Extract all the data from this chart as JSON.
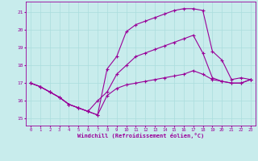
{
  "xlabel": "Windchill (Refroidissement éolien,°C)",
  "background_color": "#c8ecec",
  "line_color": "#990099",
  "grid_color": "#aadddd",
  "xlim": [
    -0.5,
    23.5
  ],
  "ylim": [
    14.6,
    21.6
  ],
  "xticks": [
    0,
    1,
    2,
    3,
    4,
    5,
    6,
    7,
    8,
    9,
    10,
    11,
    12,
    13,
    14,
    15,
    16,
    17,
    18,
    19,
    20,
    21,
    22,
    23
  ],
  "yticks": [
    15,
    16,
    17,
    18,
    19,
    20,
    21
  ],
  "line1_x": [
    0,
    1,
    2,
    3,
    4,
    5,
    6,
    7,
    8,
    9,
    10,
    11,
    12,
    13,
    14,
    15,
    16,
    17,
    18,
    19,
    20,
    21,
    22,
    23
  ],
  "line1_y": [
    17.0,
    16.8,
    16.5,
    16.2,
    15.8,
    15.6,
    15.4,
    15.2,
    17.8,
    18.5,
    19.9,
    20.3,
    20.5,
    20.7,
    20.9,
    21.1,
    21.2,
    21.2,
    21.1,
    18.8,
    18.3,
    17.2,
    17.3,
    17.2
  ],
  "line2_x": [
    0,
    1,
    2,
    3,
    4,
    5,
    6,
    7,
    8,
    9,
    10,
    11,
    12,
    13,
    14,
    15,
    16,
    17,
    18,
    19,
    20,
    21,
    22,
    23
  ],
  "line2_y": [
    17.0,
    16.8,
    16.5,
    16.2,
    15.8,
    15.6,
    15.4,
    16.0,
    16.5,
    17.5,
    18.0,
    18.5,
    18.7,
    18.9,
    19.1,
    19.3,
    19.5,
    19.7,
    18.7,
    17.3,
    17.1,
    17.0,
    17.0,
    17.2
  ],
  "line3_x": [
    0,
    1,
    2,
    3,
    4,
    5,
    6,
    7,
    8,
    9,
    10,
    11,
    12,
    13,
    14,
    15,
    16,
    17,
    18,
    19,
    20,
    21,
    22,
    23
  ],
  "line3_y": [
    17.0,
    16.8,
    16.5,
    16.2,
    15.8,
    15.6,
    15.4,
    15.2,
    16.3,
    16.7,
    16.9,
    17.0,
    17.1,
    17.2,
    17.3,
    17.4,
    17.5,
    17.7,
    17.5,
    17.2,
    17.1,
    17.0,
    17.0,
    17.2
  ]
}
